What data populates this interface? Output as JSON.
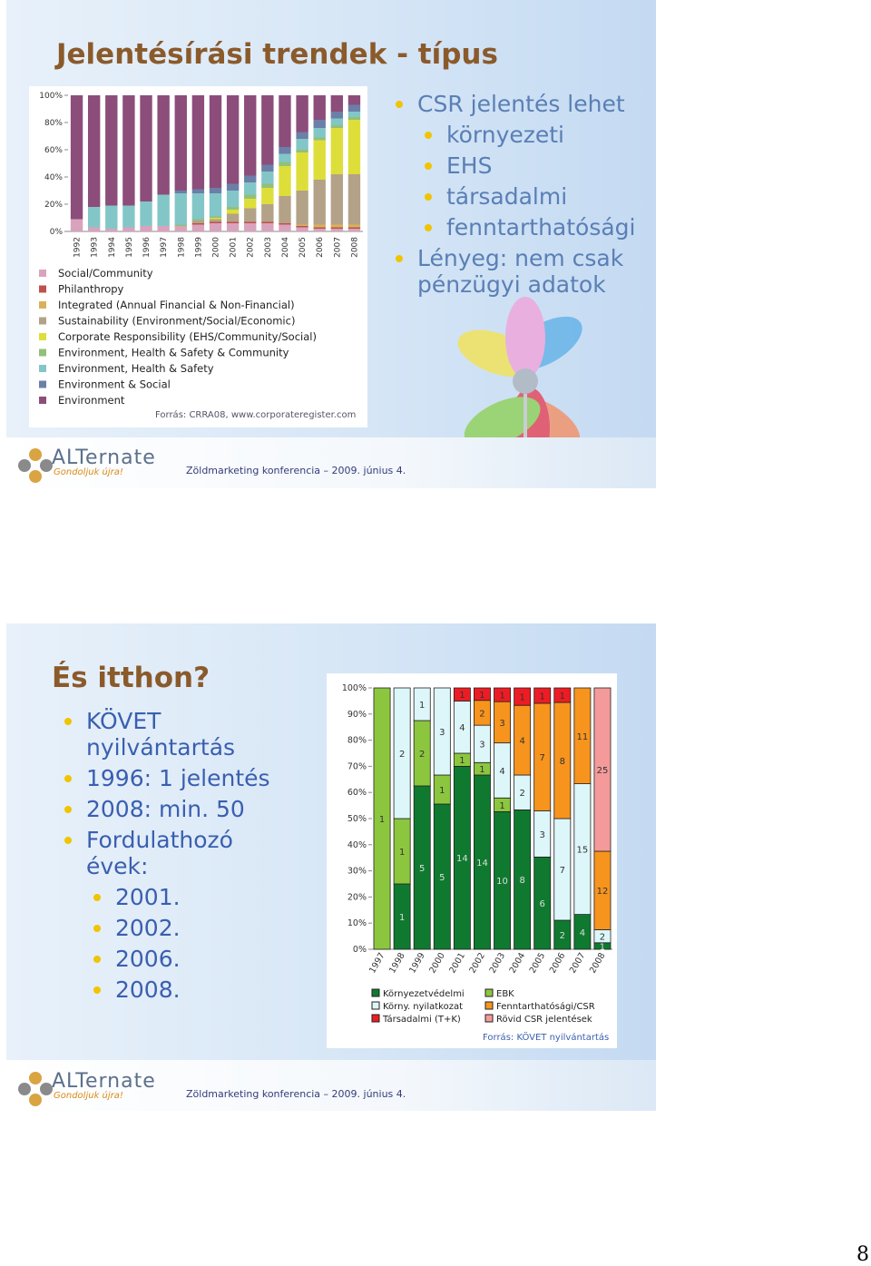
{
  "slides": [
    {
      "title": "Jelentésírási trendek - típus",
      "chart": {
        "type": "bar",
        "stacked": true,
        "percent": false,
        "data_labels": false,
        "categories": [
          "1992",
          "1993",
          "1994",
          "1995",
          "1996",
          "1997",
          "1998",
          "1999",
          "2000",
          "2001",
          "2002",
          "2003",
          "2004",
          "2005",
          "2006",
          "2007",
          "2008"
        ],
        "series": [
          {
            "name": "Social/Community",
            "color": "#d9a3bd",
            "values": [
              9,
              3,
              2,
              3,
              4,
              4,
              4,
              5,
              6,
              6,
              6,
              6,
              5,
              3,
              2,
              2,
              2
            ]
          },
          {
            "name": "Philanthropy",
            "color": "#c0504d",
            "values": [
              0,
              0,
              0,
              0,
              0,
              0,
              0,
              1,
              1,
              1,
              1,
              1,
              1,
              1,
              1,
              1,
              1
            ]
          },
          {
            "name": "Integrated (Annual Financial & Non-Financial)",
            "color": "#d8b25a",
            "values": [
              0,
              0,
              0,
              0,
              0,
              0,
              0,
              0,
              0,
              0,
              0,
              0,
              0,
              1,
              2,
              2,
              2
            ]
          },
          {
            "name": "Sustainability (Environment/Social/Economic)",
            "color": "#b3a287",
            "values": [
              0,
              0,
              0,
              0,
              0,
              0,
              0,
              2,
              2,
              6,
              10,
              13,
              20,
              25,
              33,
              37,
              37
            ]
          },
          {
            "name": "Corporate Responsibility (EHS/Community/Social)",
            "color": "#dede3a",
            "values": [
              0,
              0,
              0,
              0,
              0,
              0,
              0,
              0,
              1,
              3,
              7,
              12,
              22,
              28,
              29,
              34,
              40
            ]
          },
          {
            "name": "Environment, Health & Safety & Community",
            "color": "#92c07a",
            "values": [
              0,
              0,
              0,
              0,
              0,
              0,
              1,
              1,
              1,
              2,
              3,
              3,
              3,
              2,
              2,
              2,
              2
            ]
          },
          {
            "name": "Environment, Health & Safety",
            "color": "#83c6c8",
            "values": [
              0,
              15,
              17,
              16,
              18,
              23,
              23,
              19,
              17,
              12,
              9,
              9,
              6,
              8,
              7,
              5,
              4
            ]
          },
          {
            "name": "Environment & Social",
            "color": "#6b7fa8",
            "values": [
              0,
              0,
              0,
              0,
              0,
              0,
              2,
              3,
              4,
              5,
              5,
              5,
              5,
              5,
              6,
              5,
              5
            ]
          },
          {
            "name": "Environment",
            "color": "#8c4d7a",
            "values": [
              91,
              82,
              81,
              81,
              78,
              73,
              70,
              69,
              68,
              65,
              59,
              51,
              38,
              27,
              18,
              12,
              7
            ]
          }
        ],
        "ylim": [
          0,
          100
        ],
        "yticks": [
          {
            "value": 0,
            "label": "0%"
          },
          {
            "value": 20,
            "label": "20%"
          },
          {
            "value": 40,
            "label": "40%"
          },
          {
            "value": 60,
            "label": "60%"
          },
          {
            "value": 80,
            "label": "80%"
          },
          {
            "value": 100,
            "label": "100%"
          }
        ]
      },
      "source": "Forrás: CRRA08, www.corporateregister.com",
      "bullets": [
        {
          "text": "CSR jelentés lehet",
          "level": 1
        },
        {
          "text": "környezeti",
          "level": 2
        },
        {
          "text": "EHS",
          "level": 2
        },
        {
          "text": "társadalmi",
          "level": 2
        },
        {
          "text": "fenntarthatósági",
          "level": 2
        },
        {
          "text": "Lényeg: nem csak pénzügyi adatok",
          "level": 1
        }
      ],
      "logo": "ALTernate",
      "tagline": "Gondoljuk újra!",
      "footer": "Zöldmarketing konferencia – 2009. június 4."
    },
    {
      "title": "És itthon?",
      "chart": {
        "type": "bar",
        "stacked": true,
        "percent": true,
        "data_labels": true,
        "categories": [
          "1997",
          "1998",
          "1999",
          "2000",
          "2001",
          "2002",
          "2003",
          "2004",
          "2005",
          "2006",
          "2007",
          "2008"
        ],
        "series": [
          {
            "name": "Környezetvédelmi",
            "color": "#0f7a2f",
            "values": [
              0,
              1,
              5,
              5,
              14,
              14,
              10,
              8,
              6,
              2,
              4,
              1
            ]
          },
          {
            "name": "EBK",
            "color": "#8cc63f",
            "values": [
              1,
              1,
              2,
              1,
              1,
              1,
              1,
              0,
              0,
              0,
              0,
              0
            ]
          },
          {
            "name": "Körny. nyilatkozat",
            "color": "#ddf6fa",
            "values": [
              0,
              2,
              1,
              3,
              4,
              3,
              4,
              2,
              3,
              7,
              15,
              2
            ]
          },
          {
            "name": "Fenntarthatósági/CSR",
            "color": "#f7941d",
            "values": [
              0,
              0,
              0,
              0,
              0,
              2,
              3,
              4,
              7,
              8,
              11,
              12
            ]
          },
          {
            "name": "Társadalmi (T+K)",
            "color": "#ed1c24",
            "values": [
              0,
              0,
              0,
              0,
              1,
              1,
              1,
              1,
              1,
              1,
              0,
              0
            ]
          },
          {
            "name": "Rövid CSR jelentések",
            "color": "#f49a9a",
            "values": [
              0,
              0,
              0,
              0,
              0,
              0,
              0,
              0,
              0,
              0,
              0,
              25
            ]
          }
        ],
        "ylim": [
          0,
          100
        ],
        "yticks": [
          {
            "value": 0,
            "label": "0%"
          },
          {
            "value": 10,
            "label": "10%"
          },
          {
            "value": 20,
            "label": "20%"
          },
          {
            "value": 30,
            "label": "30%"
          },
          {
            "value": 40,
            "label": "40%"
          },
          {
            "value": 50,
            "label": "50%"
          },
          {
            "value": 60,
            "label": "60%"
          },
          {
            "value": 70,
            "label": "70%"
          },
          {
            "value": 80,
            "label": "80%"
          },
          {
            "value": 90,
            "label": "90%"
          },
          {
            "value": 100,
            "label": "100%"
          }
        ]
      },
      "source": "Forrás: KÖVET nyilvántartás",
      "bullets": [
        {
          "text": "KÖVET nyilvántartás",
          "level": 1
        },
        {
          "text": "1996: 1 jelentés",
          "level": 1
        },
        {
          "text": "2008: min. 50",
          "level": 1
        },
        {
          "text": "Fordulathozó évek:",
          "level": 1
        },
        {
          "text": "2001.",
          "level": 2
        },
        {
          "text": "2002.",
          "level": 2
        },
        {
          "text": "2006.",
          "level": 2
        },
        {
          "text": "2008.",
          "level": 2
        }
      ],
      "logo": "ALTernate",
      "tagline": "Gondoljuk újra!",
      "footer": "Zöldmarketing konferencia – 2009. június 4."
    }
  ],
  "page_number": "8"
}
